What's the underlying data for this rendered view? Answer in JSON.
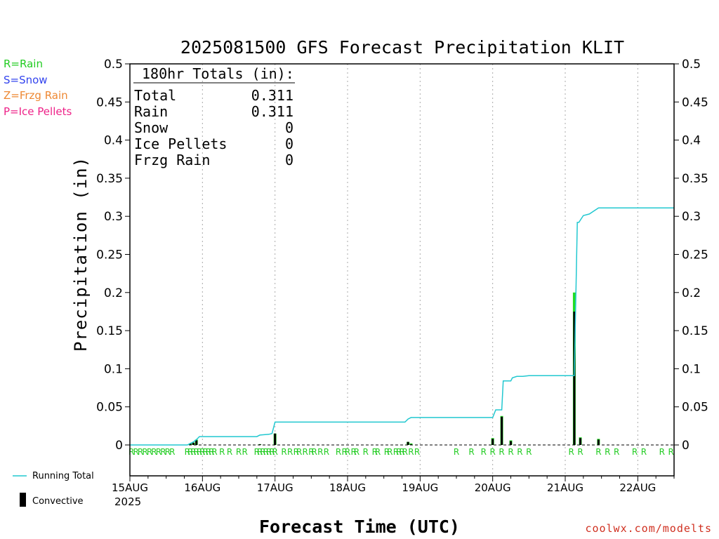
{
  "legend_types": [
    {
      "label": "R=Rain",
      "color": "#22cc22"
    },
    {
      "label": "S=Snow",
      "color": "#3344ee"
    },
    {
      "label": "Z=Frzg Rain",
      "color": "#ee8833"
    },
    {
      "label": "P=Ice Pellets",
      "color": "#ee2288"
    }
  ],
  "credit": "coolwx.com/modelts",
  "colors": {
    "running_total": "#22c8d0",
    "rain_bar": "#22dd22",
    "convective_bar": "#000000"
  },
  "chart_data": {
    "type": "bar",
    "title": "2025081500 GFS Forecast Precipitation KLIT",
    "xlabel": "Forecast Time (UTC)",
    "ylabel": "Precipitation (in)",
    "ylim": [
      0,
      0.5
    ],
    "y_ticks": [
      "0",
      "0.05",
      "0.1",
      "0.15",
      "0.2",
      "0.25",
      "0.3",
      "0.35",
      "0.4",
      "0.45",
      "0.5"
    ],
    "x_tick_labels": [
      "15AUG",
      "16AUG",
      "17AUG",
      "18AUG",
      "19AUG",
      "20AUG",
      "21AUG",
      "22AUG"
    ],
    "year_label": "2025",
    "xlim_hours": [
      0,
      180
    ],
    "grid": "vertical dotted at day boundaries",
    "totals_box": {
      "header": "180hr Totals (in):",
      "rows": [
        {
          "label": "Total",
          "value": "0.311"
        },
        {
          "label": "Rain",
          "value": "0.311"
        },
        {
          "label": "Snow",
          "value": "0"
        },
        {
          "label": "Ice Pellets",
          "value": "0"
        },
        {
          "label": "Frzg Rain",
          "value": "0"
        }
      ]
    },
    "legend": [
      {
        "name": "Running Total",
        "symbol": "line"
      },
      {
        "name": "Convective",
        "symbol": "bar"
      }
    ],
    "running_total": {
      "hours": [
        0,
        19,
        20,
        21,
        22,
        23,
        24,
        26,
        29,
        42,
        43,
        46,
        47,
        48,
        50,
        53,
        91,
        92,
        93,
        96,
        99,
        120,
        121,
        123,
        123.5,
        126,
        126.5,
        128,
        130,
        132,
        147,
        148,
        148.5,
        150,
        152,
        155,
        180
      ],
      "values": [
        0,
        0,
        0.002,
        0.004,
        0.007,
        0.011,
        0.011,
        0.011,
        0.011,
        0.011,
        0.013,
        0.014,
        0.015,
        0.03,
        0.03,
        0.03,
        0.03,
        0.034,
        0.036,
        0.036,
        0.036,
        0.036,
        0.046,
        0.046,
        0.084,
        0.084,
        0.088,
        0.09,
        0.09,
        0.091,
        0.091,
        0.292,
        0.292,
        0.301,
        0.303,
        0.311,
        0.311
      ]
    },
    "bars": [
      {
        "hour": 20,
        "total": 0.002,
        "convective": 0.002
      },
      {
        "hour": 21,
        "total": 0.003,
        "convective": 0.003
      },
      {
        "hour": 22,
        "total": 0.007,
        "convective": 0.006
      },
      {
        "hour": 43,
        "total": 0.001,
        "convective": 0.001
      },
      {
        "hour": 48,
        "total": 0.015,
        "convective": 0.015
      },
      {
        "hour": 92,
        "total": 0.004,
        "convective": 0.004
      },
      {
        "hour": 93,
        "total": 0.002,
        "convective": 0.001
      },
      {
        "hour": 120,
        "total": 0.009,
        "convective": 0.008
      },
      {
        "hour": 123,
        "total": 0.038,
        "convective": 0.037
      },
      {
        "hour": 126,
        "total": 0.006,
        "convective": 0.005
      },
      {
        "hour": 147,
        "total": 0.2,
        "convective": 0.175
      },
      {
        "hour": 149,
        "total": 0.01,
        "convective": 0.009
      },
      {
        "hour": 155,
        "total": 0.008,
        "convective": 0.007
      }
    ],
    "type_markers": {
      "symbol": "R",
      "hours": [
        0.5,
        2,
        3.5,
        5,
        6.5,
        8,
        9.5,
        11,
        12.5,
        14,
        19,
        20,
        21,
        22,
        23,
        24,
        25,
        26,
        27,
        28,
        30.5,
        33,
        36,
        38,
        42,
        43,
        44,
        45,
        46,
        47,
        48,
        51,
        53,
        55,
        56,
        58,
        60,
        61,
        63,
        65,
        69,
        71,
        72,
        74,
        75,
        78,
        81,
        82,
        85,
        86,
        88,
        89,
        90,
        91,
        93,
        95,
        108,
        113,
        117,
        120,
        123,
        126,
        129,
        132,
        146,
        149,
        155,
        158,
        161,
        167,
        170,
        176,
        179
      ]
    }
  }
}
